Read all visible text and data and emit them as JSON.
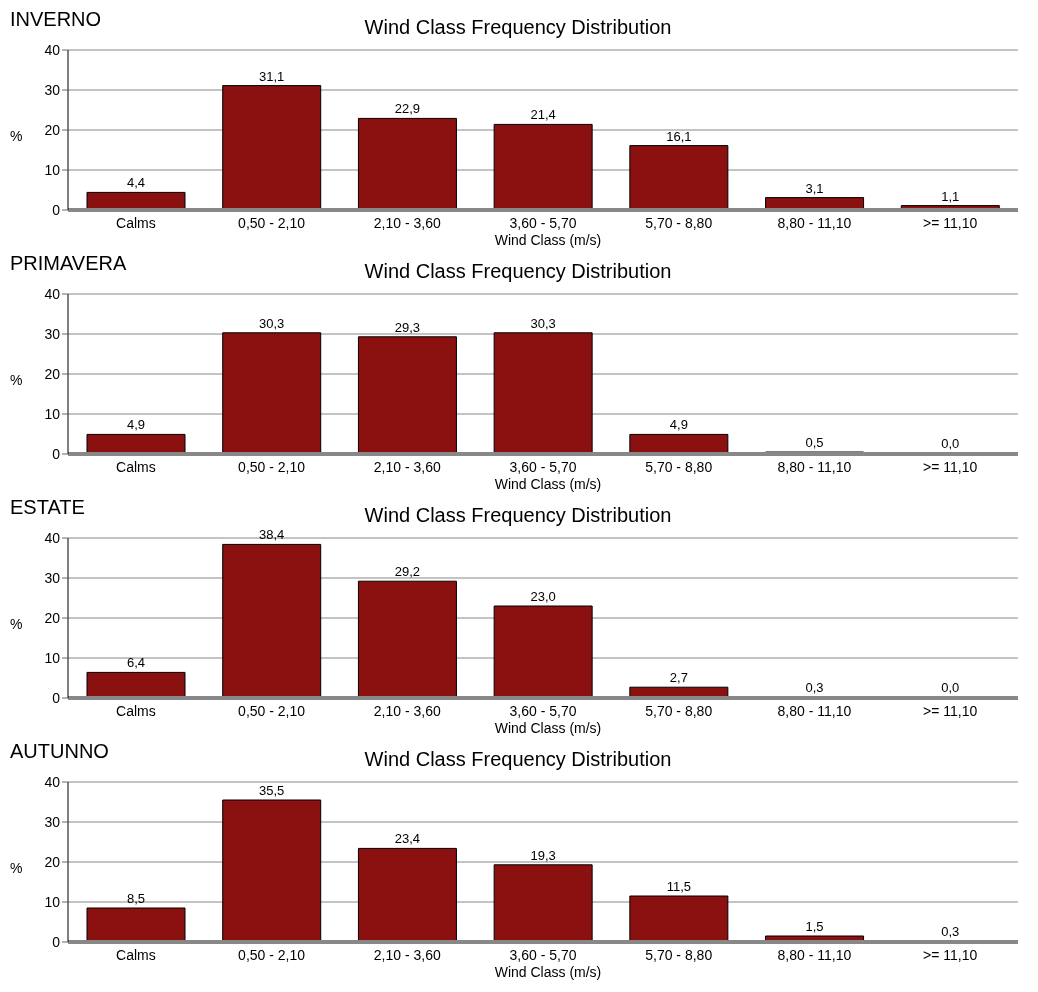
{
  "chart_data": [
    {
      "type": "bar",
      "subtitle": "INVERNO",
      "title": "Wind Class Frequency Distribution",
      "xlabel": "Wind Class (m/s)",
      "ylabel": "%",
      "categories": [
        "Calms",
        "0,50 - 2,10",
        "2,10 - 3,60",
        "3,60 - 5,70",
        "5,70 - 8,80",
        "8,80 - 11,10",
        ">= 11,10"
      ],
      "values": [
        4.4,
        31.1,
        22.9,
        21.4,
        16.1,
        3.1,
        1.1
      ],
      "value_labels": [
        "4,4",
        "31,1",
        "22,9",
        "21,4",
        "16,1",
        "3,1",
        "1,1"
      ],
      "color": "#8b1010",
      "ylim": [
        0,
        40
      ],
      "yticks": [
        0,
        10,
        20,
        30,
        40
      ],
      "grid": "y"
    },
    {
      "type": "bar",
      "subtitle": "PRIMAVERA",
      "title": "Wind Class Frequency Distribution",
      "xlabel": "Wind Class (m/s)",
      "ylabel": "%",
      "categories": [
        "Calms",
        "0,50 - 2,10",
        "2,10 - 3,60",
        "3,60 - 5,70",
        "5,70 - 8,80",
        "8,80 - 11,10",
        ">= 11,10"
      ],
      "values": [
        4.9,
        30.3,
        29.3,
        30.3,
        4.9,
        0.5,
        0.0
      ],
      "value_labels": [
        "4,9",
        "30,3",
        "29,3",
        "30,3",
        "4,9",
        "0,5",
        "0,0"
      ],
      "color": "#8b1010",
      "ylim": [
        0,
        40
      ],
      "yticks": [
        0,
        10,
        20,
        30,
        40
      ],
      "grid": "y"
    },
    {
      "type": "bar",
      "subtitle": "ESTATE",
      "title": "Wind Class Frequency Distribution",
      "xlabel": "Wind Class (m/s)",
      "ylabel": "%",
      "categories": [
        "Calms",
        "0,50 - 2,10",
        "2,10 - 3,60",
        "3,60 - 5,70",
        "5,70 - 8,80",
        "8,80 - 11,10",
        ">= 11,10"
      ],
      "values": [
        6.4,
        38.4,
        29.2,
        23.0,
        2.7,
        0.3,
        0.0
      ],
      "value_labels": [
        "6,4",
        "38,4",
        "29,2",
        "23,0",
        "2,7",
        "0,3",
        "0,0"
      ],
      "color": "#8b1010",
      "ylim": [
        0,
        40
      ],
      "yticks": [
        0,
        10,
        20,
        30,
        40
      ],
      "grid": "y"
    },
    {
      "type": "bar",
      "subtitle": "AUTUNNO",
      "title": "Wind Class Frequency Distribution",
      "xlabel": "Wind Class (m/s)",
      "ylabel": "%",
      "categories": [
        "Calms",
        "0,50 - 2,10",
        "2,10 - 3,60",
        "3,60 - 5,70",
        "5,70 - 8,80",
        "8,80 - 11,10",
        ">= 11,10"
      ],
      "values": [
        8.5,
        35.5,
        23.4,
        19.3,
        11.5,
        1.5,
        0.3
      ],
      "value_labels": [
        "8,5",
        "35,5",
        "23,4",
        "19,3",
        "11,5",
        "1,5",
        "0,3"
      ],
      "color": "#8b1010",
      "ylim": [
        0,
        40
      ],
      "yticks": [
        0,
        10,
        20,
        30,
        40
      ],
      "grid": "y"
    }
  ]
}
